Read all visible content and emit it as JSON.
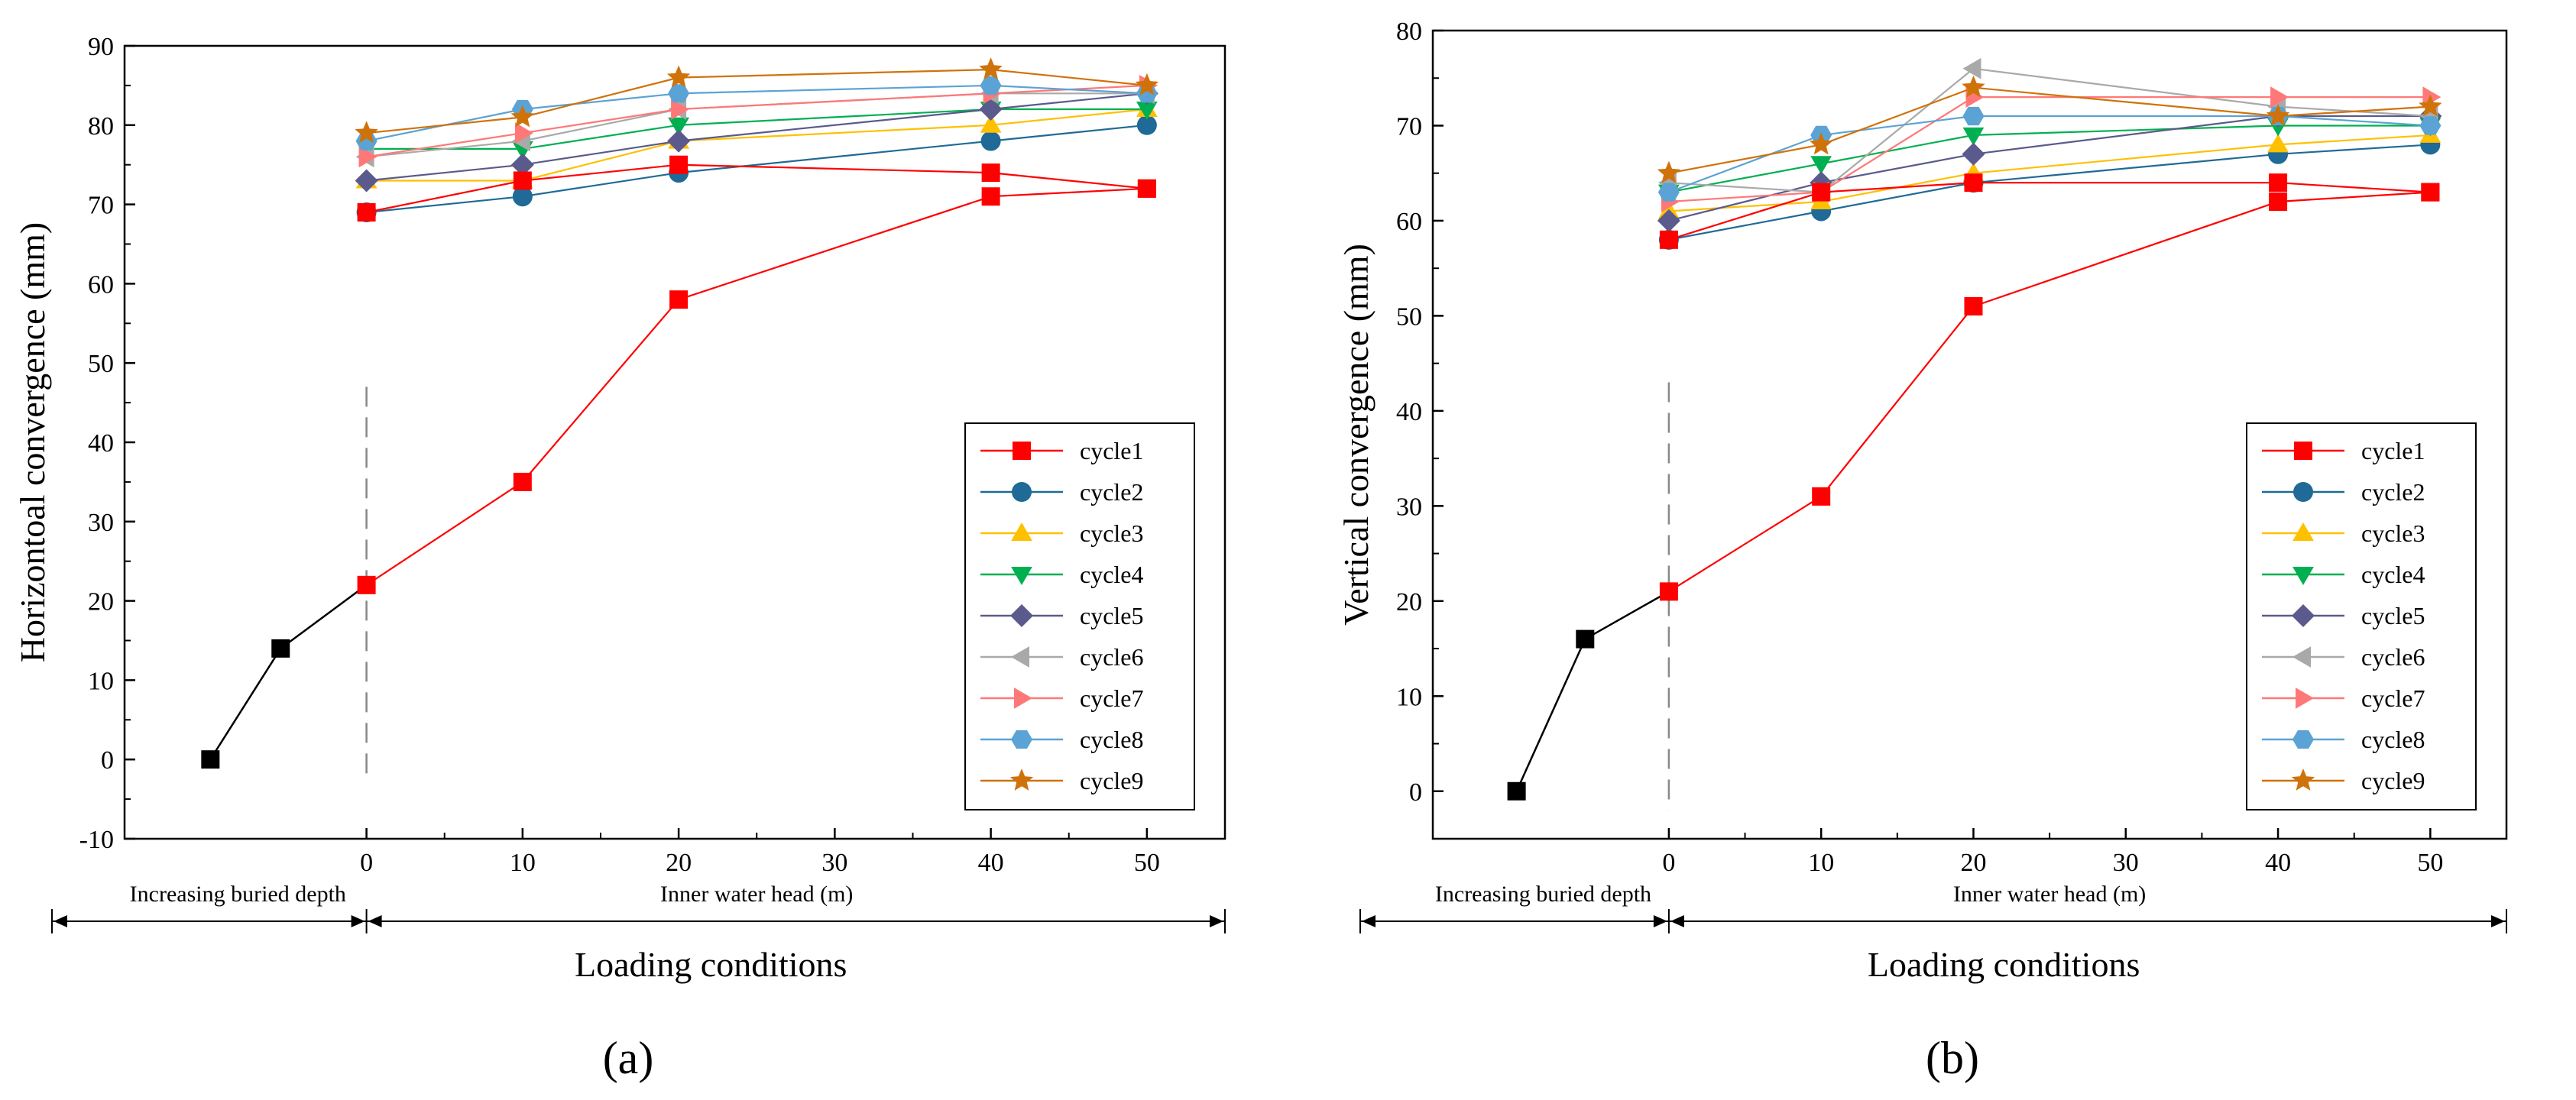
{
  "figure": {
    "panels": [
      "(a)",
      "(b)"
    ],
    "series_colors": {
      "pre": "#000000",
      "cycle1": "#ff0000",
      "cycle2": "#1f6a96",
      "cycle3": "#ffc000",
      "cycle4": "#00b050",
      "cycle5": "#5a5a8c",
      "cycle6": "#a9a9a9",
      "cycle7": "#ff7878",
      "cycle8": "#5ba3d4",
      "cycle9": "#d0720a"
    },
    "series_markers": {
      "pre": "square",
      "cycle1": "square",
      "cycle2": "circle",
      "cycle3": "triangle-up",
      "cycle4": "triangle-down",
      "cycle5": "diamond",
      "cycle6": "triangle-left",
      "cycle7": "triangle-right",
      "cycle8": "hexagon",
      "cycle9": "star"
    }
  },
  "chart_data": [
    {
      "type": "line",
      "panel_label": "(a)",
      "ylabel": "Horizontoal convergence (mm)",
      "xlabel": "Inner water head (m)",
      "extended_label": "Increasing buried depth",
      "loading_label": "Loading conditions",
      "ylim": [
        -10,
        90
      ],
      "yticks": [
        -10,
        0,
        10,
        20,
        30,
        40,
        50,
        60,
        70,
        80,
        90
      ],
      "xlim": [
        -15.5,
        55
      ],
      "xticks": [
        0,
        10,
        20,
        30,
        40,
        50
      ],
      "dashed_divider_x": 0,
      "divider_ylim": [
        -2,
        47
      ],
      "legend_position": "lower-right",
      "pre_series": {
        "name": "buried depth",
        "x": [
          -10,
          -5.5,
          0
        ],
        "values": [
          0,
          14,
          22
        ]
      },
      "series": [
        {
          "name": "cycle1",
          "x": [
            0,
            10,
            20,
            40,
            50
          ],
          "values": [
            22,
            35,
            58,
            71,
            72
          ]
        },
        {
          "name": "cycle1",
          "x": [
            0,
            10,
            20,
            40,
            50
          ],
          "values": [
            69,
            73,
            75,
            74,
            72
          ]
        },
        {
          "name": "cycle2",
          "x": [
            0,
            10,
            20,
            40,
            50
          ],
          "values": [
            69,
            71,
            74,
            78,
            80
          ]
        },
        {
          "name": "cycle3",
          "x": [
            0,
            10,
            20,
            40,
            50
          ],
          "values": [
            73,
            73,
            78,
            80,
            82
          ]
        },
        {
          "name": "cycle4",
          "x": [
            0,
            10,
            20,
            40,
            50
          ],
          "values": [
            77,
            77,
            80,
            82,
            82
          ]
        },
        {
          "name": "cycle5",
          "x": [
            0,
            10,
            20,
            40,
            50
          ],
          "values": [
            73,
            75,
            78,
            82,
            84
          ]
        },
        {
          "name": "cycle6",
          "x": [
            0,
            10,
            20,
            40,
            50
          ],
          "values": [
            76,
            78,
            82,
            84,
            84
          ]
        },
        {
          "name": "cycle7",
          "x": [
            0,
            10,
            20,
            40,
            50
          ],
          "values": [
            76,
            79,
            82,
            84,
            85
          ]
        },
        {
          "name": "cycle8",
          "x": [
            0,
            10,
            20,
            40,
            50
          ],
          "values": [
            78,
            82,
            84,
            85,
            84
          ]
        },
        {
          "name": "cycle9",
          "x": [
            0,
            10,
            20,
            40,
            50
          ],
          "values": [
            79,
            81,
            86,
            87,
            85
          ]
        }
      ],
      "legend": [
        "cycle1",
        "cycle2",
        "cycle3",
        "cycle4",
        "cycle5",
        "cycle6",
        "cycle7",
        "cycle8",
        "cycle9"
      ]
    },
    {
      "type": "line",
      "panel_label": "(b)",
      "ylabel": "Vertical convergence (mm)",
      "xlabel": "Inner water head (m)",
      "extended_label": "Increasing buried depth",
      "loading_label": "Loading conditions",
      "ylim": [
        -5,
        80
      ],
      "yticks": [
        0,
        10,
        20,
        30,
        40,
        50,
        60,
        70,
        80
      ],
      "xlim": [
        -15.5,
        55
      ],
      "xticks": [
        0,
        10,
        20,
        30,
        40,
        50
      ],
      "dashed_divider_x": 0,
      "divider_ylim": [
        -2,
        43
      ],
      "legend_position": "lower-right",
      "pre_series": {
        "name": "buried depth",
        "x": [
          -10,
          -5.5,
          0
        ],
        "values": [
          0,
          16,
          21
        ]
      },
      "series": [
        {
          "name": "cycle1",
          "x": [
            0,
            10,
            20,
            40,
            50
          ],
          "values": [
            21,
            31,
            51,
            62,
            63
          ]
        },
        {
          "name": "cycle1",
          "x": [
            0,
            10,
            20,
            40,
            50
          ],
          "values": [
            58,
            63,
            64,
            64,
            63
          ]
        },
        {
          "name": "cycle2",
          "x": [
            0,
            10,
            20,
            40,
            50
          ],
          "values": [
            58,
            61,
            64,
            67,
            68
          ]
        },
        {
          "name": "cycle3",
          "x": [
            0,
            10,
            20,
            40,
            50
          ],
          "values": [
            61,
            62,
            65,
            68,
            69
          ]
        },
        {
          "name": "cycle4",
          "x": [
            0,
            10,
            20,
            40,
            50
          ],
          "values": [
            63,
            66,
            69,
            70,
            70
          ]
        },
        {
          "name": "cycle5",
          "x": [
            0,
            10,
            20,
            40,
            50
          ],
          "values": [
            60,
            64,
            67,
            71,
            71
          ]
        },
        {
          "name": "cycle6",
          "x": [
            0,
            10,
            20,
            40,
            50
          ],
          "values": [
            64,
            63,
            76,
            72,
            71
          ]
        },
        {
          "name": "cycle7",
          "x": [
            0,
            10,
            20,
            40,
            50
          ],
          "values": [
            62,
            63,
            73,
            73,
            73
          ]
        },
        {
          "name": "cycle8",
          "x": [
            0,
            10,
            20,
            40,
            50
          ],
          "values": [
            63,
            69,
            71,
            71,
            70
          ]
        },
        {
          "name": "cycle9",
          "x": [
            0,
            10,
            20,
            40,
            50
          ],
          "values": [
            65,
            68,
            74,
            71,
            72
          ]
        }
      ],
      "legend": [
        "cycle1",
        "cycle2",
        "cycle3",
        "cycle4",
        "cycle5",
        "cycle6",
        "cycle7",
        "cycle8",
        "cycle9"
      ]
    }
  ]
}
